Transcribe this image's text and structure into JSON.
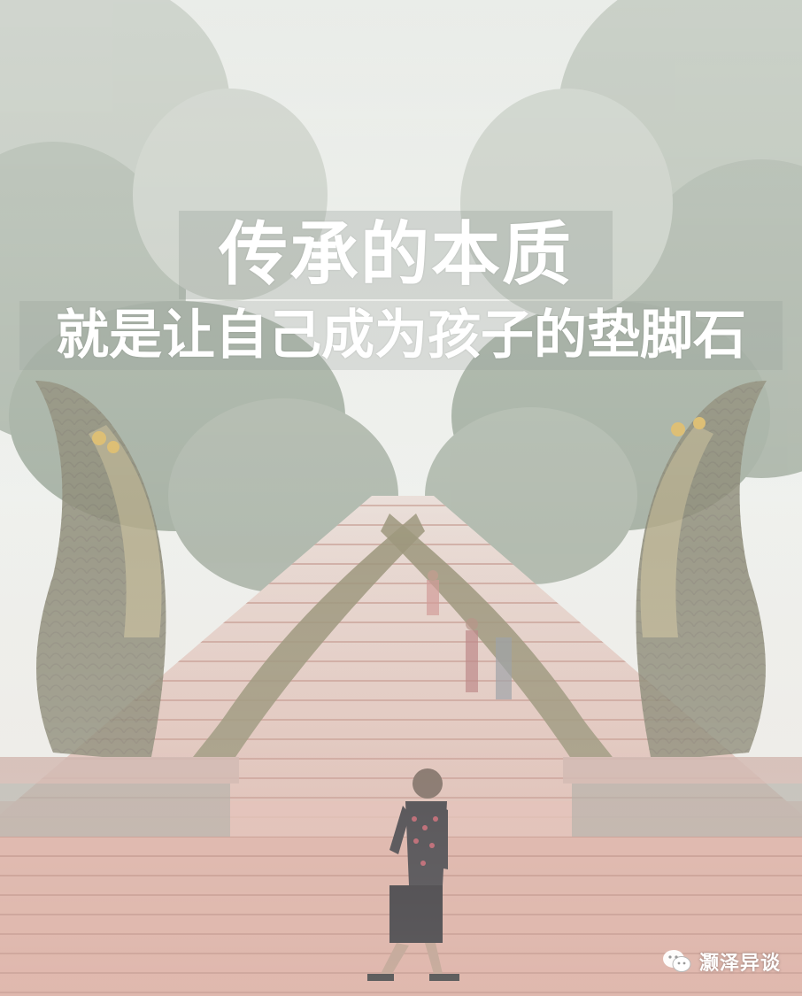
{
  "poster": {
    "headline_line1": "传承的本质",
    "headline_line2": "就是让自己成为孩子的垫脚石"
  },
  "watermark": {
    "label": "灏泽异谈",
    "icon": "wechat-icon"
  },
  "colors": {
    "fog": "#eef0ec",
    "foliage": "#7f8f7c",
    "stairs": "#c9897a",
    "text": "#ffffff"
  }
}
